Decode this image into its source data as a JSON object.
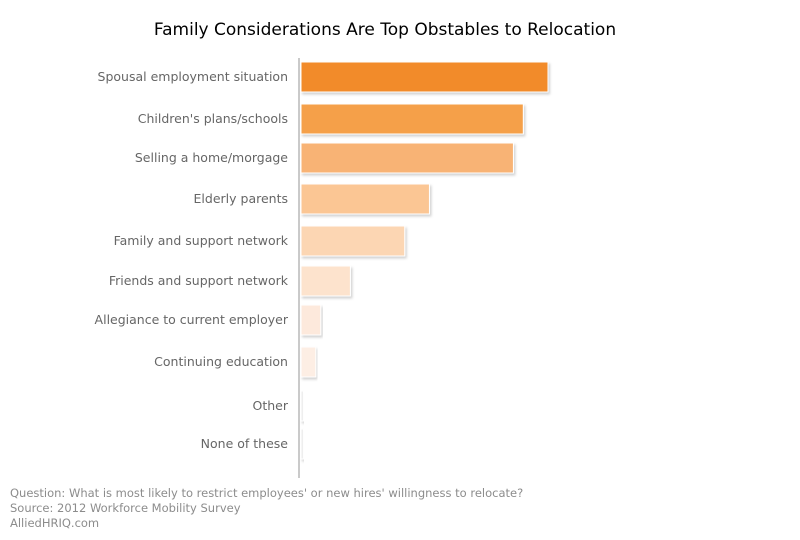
{
  "title": "Family Considerations Are Top Obstables to Relocation",
  "footer": {
    "question": "Question: What is most likely to restrict employees' or new hires' willingness to relocate?",
    "source": "Source: 2012 Workforce Mobility Survey",
    "credit": "AlliedHRIQ.com"
  },
  "chart_data": {
    "type": "bar",
    "orientation": "horizontal",
    "categories": [
      "Spousal employment situation",
      "Children's plans/schools",
      "Selling a home/morgage",
      "Elderly parents",
      "Family and support network",
      "Friends and support network",
      "Allegiance to current employer",
      "Continuing education",
      "Other",
      "None of these"
    ],
    "values": [
      50,
      45,
      43,
      26,
      21,
      10,
      4,
      3,
      0.5,
      0.5
    ],
    "colors": [
      "#f28b2a",
      "#f5a04a",
      "#f8b374",
      "#fbc694",
      "#fcd6b3",
      "#fde3cd",
      "#fde9dc",
      "#fdeee4",
      "#eeeeee",
      "#eeeeee"
    ],
    "xlim": [
      0,
      50
    ],
    "grid": false,
    "legend": "none",
    "xlabel": "",
    "ylabel": ""
  }
}
